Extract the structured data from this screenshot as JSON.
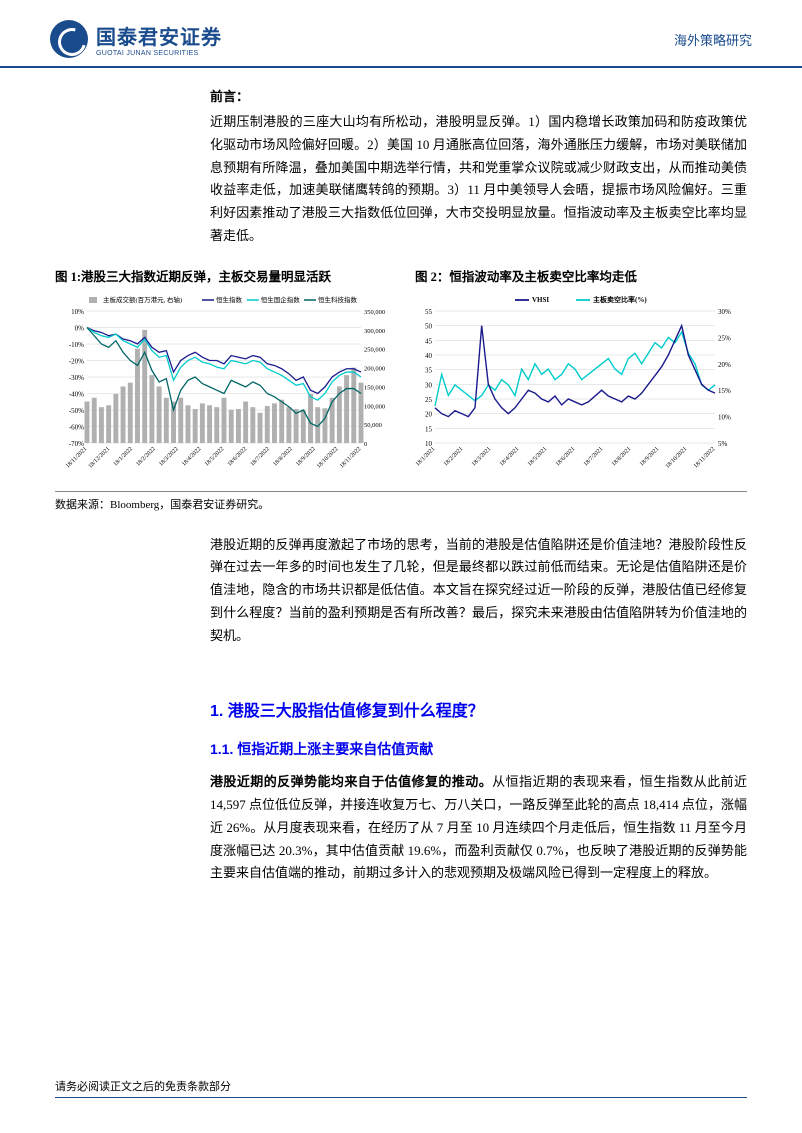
{
  "header": {
    "logo_cn": "国泰君安证券",
    "logo_en": "GUOTAI JUNAN SECURITIES",
    "category": "海外策略研究"
  },
  "preface": {
    "label": "前言：",
    "text": "近期压制港股的三座大山均有所松动，港股明显反弹。1）国内稳增长政策加码和防疫政策优化驱动市场风险偏好回暖。2）美国 10 月通胀高位回落，海外通胀压力缓解，市场对美联储加息预期有所降温，叠加美国中期选举行情，共和党重掌众议院或减少财政支出，从而推动美债收益率走低，加速美联储鹰转鸽的预期。3）11 月中美领导人会晤，提振市场风险偏好。三重利好因素推动了港股三大指数低位回弹，大市交投明显放量。恒指波动率及主板卖空比率均显著走低。"
  },
  "figure1": {
    "title": "图 1:港股三大指数近期反弹，主板交易量明显活跃",
    "legend": {
      "volume": "主板成交额(百万港元, 右轴)",
      "hsi": "恒生指数",
      "hscei": "恒生国企指数",
      "hstech": "恒生科技指数"
    },
    "x_labels": [
      "18/11/2021",
      "18/12/2021",
      "18/1/2022",
      "18/2/2022",
      "18/3/2022",
      "18/4/2022",
      "18/5/2022",
      "18/6/2022",
      "18/7/2022",
      "18/8/2022",
      "18/9/2022",
      "18/10/2022",
      "18/11/2022"
    ],
    "left_y": {
      "min": -70,
      "max": 10,
      "step": 10
    },
    "right_y": {
      "min": 0,
      "max": 350000,
      "step": 50000
    },
    "volume": [
      110000,
      120000,
      95000,
      100000,
      130000,
      150000,
      160000,
      250000,
      300000,
      180000,
      150000,
      120000,
      110000,
      120000,
      100000,
      90000,
      105000,
      100000,
      95000,
      120000,
      88000,
      90000,
      110000,
      95000,
      80000,
      98000,
      105000,
      115000,
      95000,
      90000,
      88000,
      130000,
      95000,
      92000,
      120000,
      150000,
      180000,
      200000,
      160000
    ],
    "hsi": [
      0,
      -2,
      -3,
      -5,
      -4,
      -7,
      -8,
      -10,
      -6,
      -12,
      -15,
      -14,
      -27,
      -20,
      -17,
      -15,
      -18,
      -20,
      -20,
      -22,
      -17,
      -18,
      -19,
      -17,
      -18,
      -22,
      -23,
      -25,
      -28,
      -32,
      -30,
      -38,
      -40,
      -36,
      -30,
      -27,
      -25,
      -25,
      -27
    ],
    "hscei": [
      0,
      -3,
      -5,
      -6,
      -4,
      -8,
      -10,
      -12,
      -7,
      -14,
      -18,
      -17,
      -32,
      -24,
      -20,
      -18,
      -21,
      -22,
      -24,
      -25,
      -20,
      -21,
      -22,
      -20,
      -21,
      -25,
      -27,
      -29,
      -32,
      -35,
      -34,
      -42,
      -44,
      -40,
      -33,
      -29,
      -27,
      -27,
      -30
    ],
    "hstech": [
      0,
      -5,
      -10,
      -12,
      -8,
      -15,
      -20,
      -23,
      -15,
      -26,
      -33,
      -31,
      -50,
      -38,
      -32,
      -30,
      -34,
      -36,
      -38,
      -40,
      -32,
      -34,
      -36,
      -33,
      -35,
      -40,
      -42,
      -45,
      -48,
      -52,
      -50,
      -58,
      -60,
      -55,
      -45,
      -40,
      -37,
      -37,
      -40
    ],
    "colors": {
      "volume": "#b0b0b0",
      "hsi": "#1a1a8c",
      "hscei": "#00cccc",
      "hstech": "#006666",
      "grid": "#d0d0d0",
      "text": "#000000"
    }
  },
  "figure2": {
    "title": "图 2：恒指波动率及主板卖空比率均走低",
    "legend": {
      "vhsi": "VHSI",
      "short": "主板卖空比率(%)"
    },
    "x_labels": [
      "18/1/2021",
      "18/2/2021",
      "18/3/2021",
      "18/4/2021",
      "18/5/2021",
      "18/6/2021",
      "18/7/2021",
      "18/8/2021",
      "18/9/2021",
      "18/10/2021",
      "18/11/2022"
    ],
    "left_y": {
      "min": 10,
      "max": 55,
      "step": 5
    },
    "right_y": {
      "min": 5,
      "max": 30,
      "step": 5
    },
    "vhsi": [
      22,
      20,
      19,
      21,
      20,
      19,
      22,
      50,
      30,
      25,
      22,
      20,
      22,
      25,
      28,
      27,
      25,
      24,
      26,
      23,
      25,
      24,
      23,
      24,
      26,
      28,
      26,
      25,
      24,
      26,
      25,
      27,
      30,
      33,
      36,
      40,
      45,
      50,
      40,
      35,
      30,
      28,
      27
    ],
    "short": [
      12,
      18,
      14,
      16,
      15,
      14,
      13,
      14,
      16,
      15,
      17,
      16,
      14,
      19,
      17,
      20,
      18,
      19,
      17,
      18,
      20,
      19,
      17,
      18,
      19,
      20,
      21,
      19,
      18,
      21,
      22,
      20,
      22,
      24,
      23,
      25,
      24,
      26,
      22,
      20,
      16,
      15,
      16
    ],
    "colors": {
      "vhsi": "#1a1a8c",
      "short": "#00cccc",
      "grid": "#d0d0d0",
      "text": "#000000"
    }
  },
  "source": "数据来源：Bloomberg，国泰君安证券研究。",
  "para2": "港股近期的反弹再度激起了市场的思考，当前的港股是估值陷阱还是价值洼地？港股阶段性反弹在过去一年多的时间也发生了几轮，但是最终都以跌过前低而结束。无论是估值陷阱还是价值洼地，隐含的市场共识都是低估值。本文旨在探究经过近一阶段的反弹，港股估值已经修复到什么程度？当前的盈利预期是否有所改善？最后，探究未来港股由估值陷阱转为价值洼地的契机。",
  "h1": "1. 港股三大股指估值修复到什么程度？",
  "h2": "1.1. 恒指近期上涨主要来自估值贡献",
  "para3_bold": "港股近期的反弹势能均来自于估值修复的推动。",
  "para3": "从恒指近期的表现来看，恒生指数从此前近 14,597 点位低位反弹，并接连收复万七、万八关口，一路反弹至此轮的高点 18,414 点位，涨幅近 26%。从月度表现来看，在经历了从 7 月至 10 月连续四个月走低后，恒生指数 11 月至今月度涨幅已达 20.3%，其中估值贡献 19.6%，而盈利贡献仅 0.7%，也反映了港股近期的反弹势能主要来自估值端的推动，前期过多计入的悲观预期及极端风险已得到一定程度上的释放。",
  "footer": "请务必阅读正文之后的免责条款部分"
}
